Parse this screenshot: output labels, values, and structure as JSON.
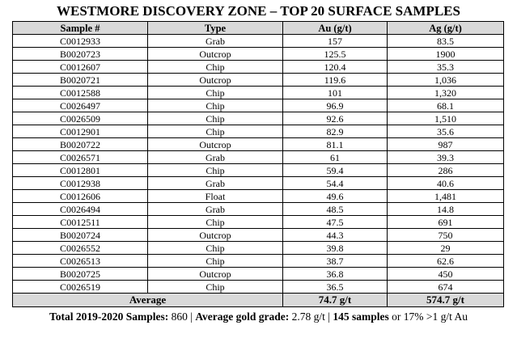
{
  "title": "WESTMORE DISCOVERY ZONE – TOP 20 SURFACE SAMPLES",
  "table": {
    "header": [
      "Sample #",
      "Type",
      "Au (g/t)",
      "Ag (g/t)"
    ],
    "rows": [
      [
        "C0012933",
        "Grab",
        "157",
        "83.5"
      ],
      [
        "B0020723",
        "Outcrop",
        "125.5",
        "1900"
      ],
      [
        "C0012607",
        "Chip",
        "120.4",
        "35.3"
      ],
      [
        "B0020721",
        "Outcrop",
        "119.6",
        "1,036"
      ],
      [
        "C0012588",
        "Chip",
        "101",
        "1,320"
      ],
      [
        "C0026497",
        "Chip",
        "96.9",
        "68.1"
      ],
      [
        "C0026509",
        "Chip",
        "92.6",
        "1,510"
      ],
      [
        "C0012901",
        "Chip",
        "82.9",
        "35.6"
      ],
      [
        "B0020722",
        "Outcrop",
        "81.1",
        "987"
      ],
      [
        "C0026571",
        "Grab",
        "61",
        "39.3"
      ],
      [
        "C0012801",
        "Chip",
        "59.4",
        "286"
      ],
      [
        "C0012938",
        "Grab",
        "54.4",
        "40.6"
      ],
      [
        "C0012606",
        "Float",
        "49.6",
        "1,481"
      ],
      [
        "C0026494",
        "Grab",
        "48.5",
        "14.8"
      ],
      [
        "C0012511",
        "Chip",
        "47.5",
        "691"
      ],
      [
        "B0020724",
        "Outcrop",
        "44.3",
        "750"
      ],
      [
        "C0026552",
        "Chip",
        "39.8",
        "29"
      ],
      [
        "C0026513",
        "Chip",
        "38.7",
        "62.6"
      ],
      [
        "B0020725",
        "Outcrop",
        "36.8",
        "450"
      ],
      [
        "C0026519",
        "Chip",
        "36.5",
        "674"
      ]
    ],
    "average": {
      "label": "Average",
      "au": "74.7 g/t",
      "ag": "574.7 g/t"
    }
  },
  "footer": [
    {
      "text": "Total 2019-2020 Samples:",
      "bold": true
    },
    {
      "text": " 860 | ",
      "bold": false
    },
    {
      "text": "Average gold grade:",
      "bold": true
    },
    {
      "text": " 2.78 g/t | ",
      "bold": false
    },
    {
      "text": "145 samples",
      "bold": true
    },
    {
      "text": " or 17% >1 g/t Au",
      "bold": false
    }
  ]
}
